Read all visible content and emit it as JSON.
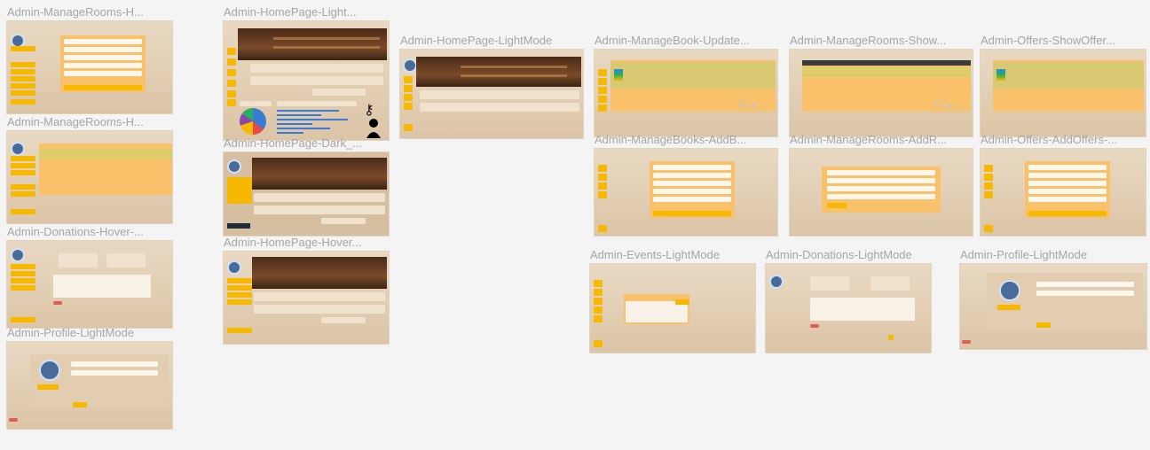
{
  "frames": [
    {
      "title": "Admin-ManageRooms-H..."
    },
    {
      "title": "Admin-HomePage-Light..."
    },
    {
      "title": "Admin-HomePage-LightMode"
    },
    {
      "title": "Admin-ManageBook-Update..."
    },
    {
      "title": "Admin-ManageRooms-Show..."
    },
    {
      "title": "Admin-Offers-ShowOffer..."
    },
    {
      "title": "Admin-ManageRooms-H..."
    },
    {
      "title": "Admin-ManageBooks-AddB..."
    },
    {
      "title": "Admin-ManageRooms-AddR..."
    },
    {
      "title": "Admin-Offers-AddOffers-..."
    },
    {
      "title": "Admin-HomePage-Dark_..."
    },
    {
      "title": "Admin-Donations-Hover-..."
    },
    {
      "title": "Admin-HomePage-Hover..."
    },
    {
      "title": "Admin-Events-LightMode"
    },
    {
      "title": "Admin-Donations-LightMode"
    },
    {
      "title": "Admin-Profile-LightMode"
    },
    {
      "title": "Admin-Profile-LightMode"
    }
  ],
  "labels": {
    "fra": "Fra..."
  }
}
